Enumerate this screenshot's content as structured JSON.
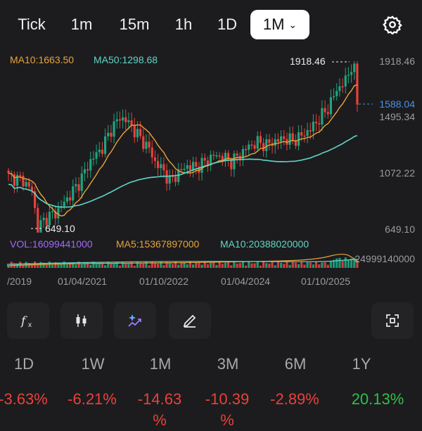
{
  "timeframes": [
    "Tick",
    "1m",
    "15m",
    "1h",
    "1D",
    "1M"
  ],
  "active_timeframe": "1M",
  "colors": {
    "up": "#1fa57f",
    "down": "#e8413c",
    "ma10": "#e8a33a",
    "ma50": "#5fd6c8",
    "vol_label": "#a26bf5",
    "ma5": "#e8a33a",
    "ma10vol": "#5fd6c8",
    "last_price": "#4a8fe8"
  },
  "indicators": {
    "ma10_label": "MA10:1663.50",
    "ma50_label": "MA50:1298.68",
    "vol_label": "VOL:16099441000",
    "ma5_vol_label": "MA5:15367897000",
    "ma10_vol_label": "MA10:20388020000"
  },
  "chart_data": {
    "type": "candlestick",
    "y_axis_labels": [
      "1918.46",
      "1495.34",
      "1072.22",
      "649.10"
    ],
    "last_price_label": "1588.04",
    "high_label": "1918.46",
    "low_label": "649.10",
    "volume_axis_label": "24999140000",
    "x_axis_labels": [
      "/2019",
      "01/04/2021",
      "01/10/2022",
      "01/04/2024",
      "01/10/2025"
    ],
    "y_range": [
      649.1,
      1918.46
    ]
  },
  "tools": [
    "formula-icon",
    "candle-type-icon",
    "ai-sparkle-icon",
    "draw-pencil-icon",
    "fullscreen-icon"
  ],
  "periods": [
    {
      "label": "1D",
      "change": "-3.63%",
      "sign": "neg"
    },
    {
      "label": "1W",
      "change": "-6.21%",
      "sign": "neg"
    },
    {
      "label": "1M",
      "change": "-14.63\n%",
      "sign": "neg"
    },
    {
      "label": "3M",
      "change": "-10.39\n%",
      "sign": "neg"
    },
    {
      "label": "6M",
      "change": "-2.89%",
      "sign": "neg"
    },
    {
      "label": "1Y",
      "change": "20.13%",
      "sign": "pos"
    }
  ]
}
